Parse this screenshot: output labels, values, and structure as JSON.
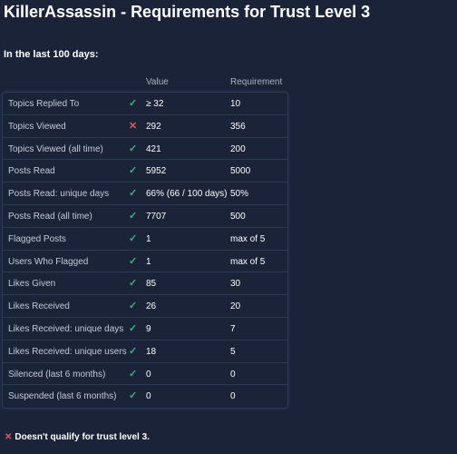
{
  "page": {
    "title": "KillerAssassin - Requirements for Trust Level 3",
    "subtitle": "In the last 100 days:",
    "columns": {
      "value": "Value",
      "requirement": "Requirement"
    },
    "rows": [
      {
        "label": "Topics Replied To",
        "status": "check",
        "value": "≥ 32",
        "requirement": "10"
      },
      {
        "label": "Topics Viewed",
        "status": "cross",
        "value": "292",
        "requirement": "356"
      },
      {
        "label": "Topics Viewed (all time)",
        "status": "check",
        "value": "421",
        "requirement": "200"
      },
      {
        "label": "Posts Read",
        "status": "check",
        "value": "5952",
        "requirement": "5000"
      },
      {
        "label": "Posts Read: unique days",
        "status": "check",
        "value": "66% (66 / 100 days)",
        "requirement": "50%"
      },
      {
        "label": "Posts Read (all time)",
        "status": "check",
        "value": "7707",
        "requirement": "500"
      },
      {
        "label": "Flagged Posts",
        "status": "check",
        "value": "1",
        "requirement": "max of 5"
      },
      {
        "label": "Users Who Flagged",
        "status": "check",
        "value": "1",
        "requirement": "max of 5"
      },
      {
        "label": "Likes Given",
        "status": "check",
        "value": "85",
        "requirement": "30"
      },
      {
        "label": "Likes Received",
        "status": "check",
        "value": "26",
        "requirement": "20"
      },
      {
        "label": "Likes Received: unique days",
        "status": "check",
        "value": "9",
        "requirement": "7"
      },
      {
        "label": "Likes Received: unique users",
        "status": "check",
        "value": "18",
        "requirement": "5"
      },
      {
        "label": "Silenced (last 6 months)",
        "status": "check",
        "value": "0",
        "requirement": "0"
      },
      {
        "label": "Suspended (last 6 months)",
        "status": "check",
        "value": "0",
        "requirement": "0"
      }
    ],
    "result": {
      "icon": "cross-icon",
      "text": "Doesn't qualify for trust level 3."
    }
  },
  "colors": {
    "background": "#1a2338",
    "check": "#37b877",
    "cross": "#e45a5a",
    "border": "#2b3a57"
  }
}
